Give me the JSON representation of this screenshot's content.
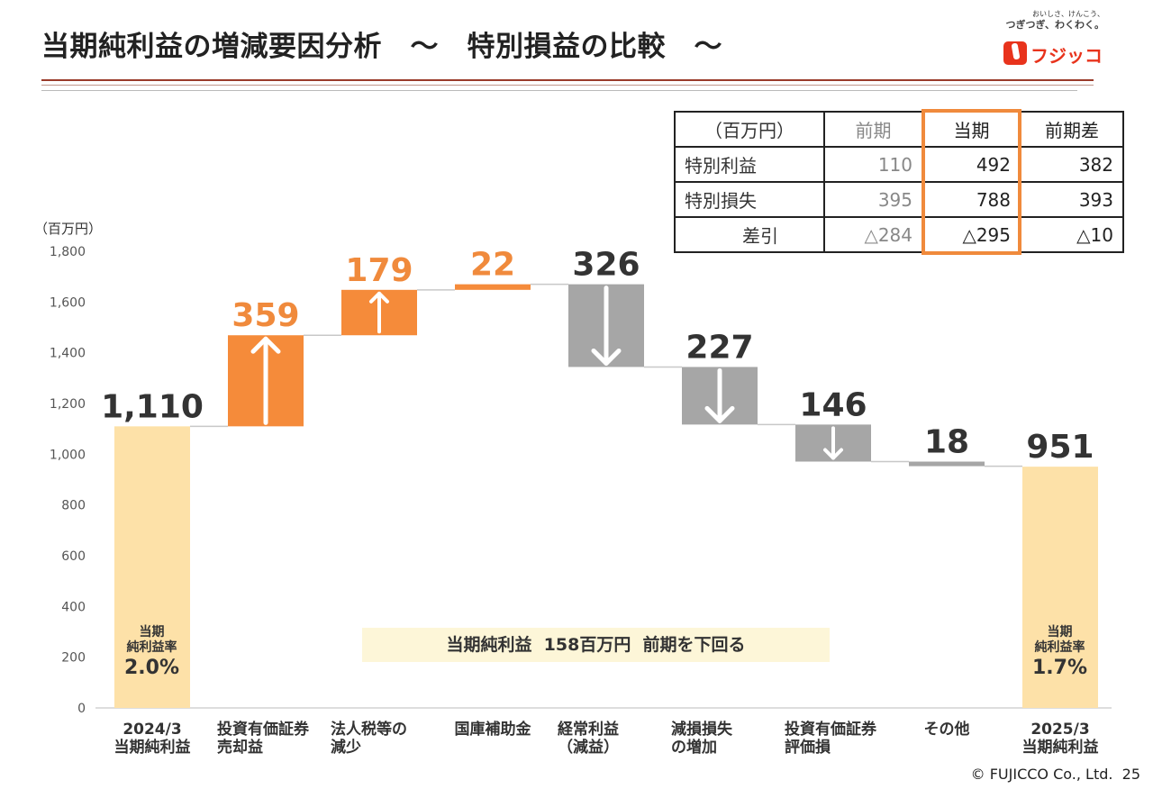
{
  "header": {
    "title": "当期純利益の増減要因分析　～　特別損益の比較　～",
    "logo_tagline": "おいしさ、けんこう、",
    "logo_tagline2": "つぎつぎ、わくわく。",
    "logo_name": "フジッコ"
  },
  "colors": {
    "increase": "#f58b3a",
    "decrease": "#a6a6a6",
    "total": "#fde1a8",
    "increase_label": "#f08a3c",
    "decrease_label": "#333333",
    "brand": "#e8331c"
  },
  "chart_data": {
    "type": "waterfall",
    "unit_label": "（百万円）",
    "ylim": [
      0,
      1800
    ],
    "yticks": [
      "0",
      "200",
      "400",
      "600",
      "800",
      "1,000",
      "1,200",
      "1,400",
      "1,600",
      "1,800"
    ],
    "ytick_values": [
      0,
      200,
      400,
      600,
      800,
      1000,
      1200,
      1400,
      1600,
      1800
    ],
    "categories": [
      [
        "2024/3",
        "当期純利益"
      ],
      [
        "投資有価証券",
        "売却益"
      ],
      [
        "法人税等の",
        "減少"
      ],
      [
        "国庫補助金"
      ],
      [
        "経常利益",
        "（減益）"
      ],
      [
        "減損損失",
        "の増加"
      ],
      [
        "投資有価証券",
        "評価損"
      ],
      [
        "その他"
      ],
      [
        "2025/3",
        "当期純利益"
      ]
    ],
    "steps": [
      {
        "kind": "total",
        "value": 1110,
        "label": "1,110"
      },
      {
        "kind": "increase",
        "value": 359,
        "label": "359"
      },
      {
        "kind": "increase",
        "value": 179,
        "label": "179"
      },
      {
        "kind": "increase",
        "value": 22,
        "label": "22"
      },
      {
        "kind": "decrease",
        "value": 326,
        "label": "326"
      },
      {
        "kind": "decrease",
        "value": 227,
        "label": "227"
      },
      {
        "kind": "decrease",
        "value": 146,
        "label": "146"
      },
      {
        "kind": "decrease",
        "value": 18,
        "label": "18"
      },
      {
        "kind": "total",
        "value": 951,
        "label": "951"
      }
    ],
    "annotation": "当期純利益  158百万円  前期を下回る",
    "rate_left": {
      "l1": "当期",
      "l2": "純利益率",
      "value": "2.0%"
    },
    "rate_right": {
      "l1": "当期",
      "l2": "純利益率",
      "value": "1.7%"
    }
  },
  "table": {
    "headers": [
      "（百万円）",
      "前期",
      "当期",
      "前期差"
    ],
    "rows": [
      {
        "label": "特別利益",
        "prev": "110",
        "curr": "492",
        "diff": "382"
      },
      {
        "label": "特別損失",
        "prev": "395",
        "curr": "788",
        "diff": "393"
      },
      {
        "label": "差引",
        "prev": "△284",
        "curr": "△295",
        "diff": "△10"
      }
    ]
  },
  "footer": {
    "copyright": "© FUJICCO Co., Ltd.",
    "page": "25"
  }
}
